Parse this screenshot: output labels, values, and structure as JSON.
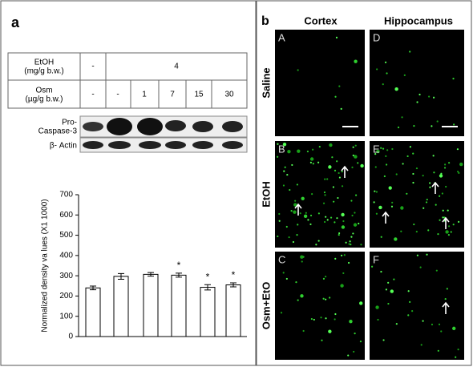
{
  "panel_a": {
    "label": "a",
    "table": {
      "rows": [
        [
          "EtOH\n(mg/g b.w.)",
          "-",
          "4"
        ],
        [
          "Osm\n(µg/g b.w.)",
          "-",
          "-",
          "1",
          "7",
          "15",
          "30"
        ]
      ]
    },
    "blot": {
      "labels": [
        "Pro-\nCaspase-3",
        "β- Actin"
      ]
    }
  },
  "chart_data": {
    "type": "bar",
    "y_label": "Normalized density va lues (X1 1000)",
    "categories": [
      null,
      null,
      null,
      null,
      null,
      null
    ],
    "values": [
      240,
      297,
      307,
      303,
      243,
      255
    ],
    "errors": [
      9,
      14,
      9,
      10,
      13,
      10
    ],
    "annotations": [
      null,
      null,
      null,
      "*",
      "*",
      "*"
    ],
    "color": "#ffffff",
    "ylim": [
      0,
      700
    ],
    "yticks": [
      0,
      100,
      200,
      300,
      400,
      500,
      600,
      700
    ]
  },
  "panel_b": {
    "label": "b",
    "columns": [
      "Cortex",
      "Hippocampus"
    ],
    "rows": [
      "Saline",
      "EtOH",
      "Osm+EtO"
    ],
    "images": [
      "A",
      "D",
      "B",
      "E",
      "C",
      "F"
    ]
  }
}
